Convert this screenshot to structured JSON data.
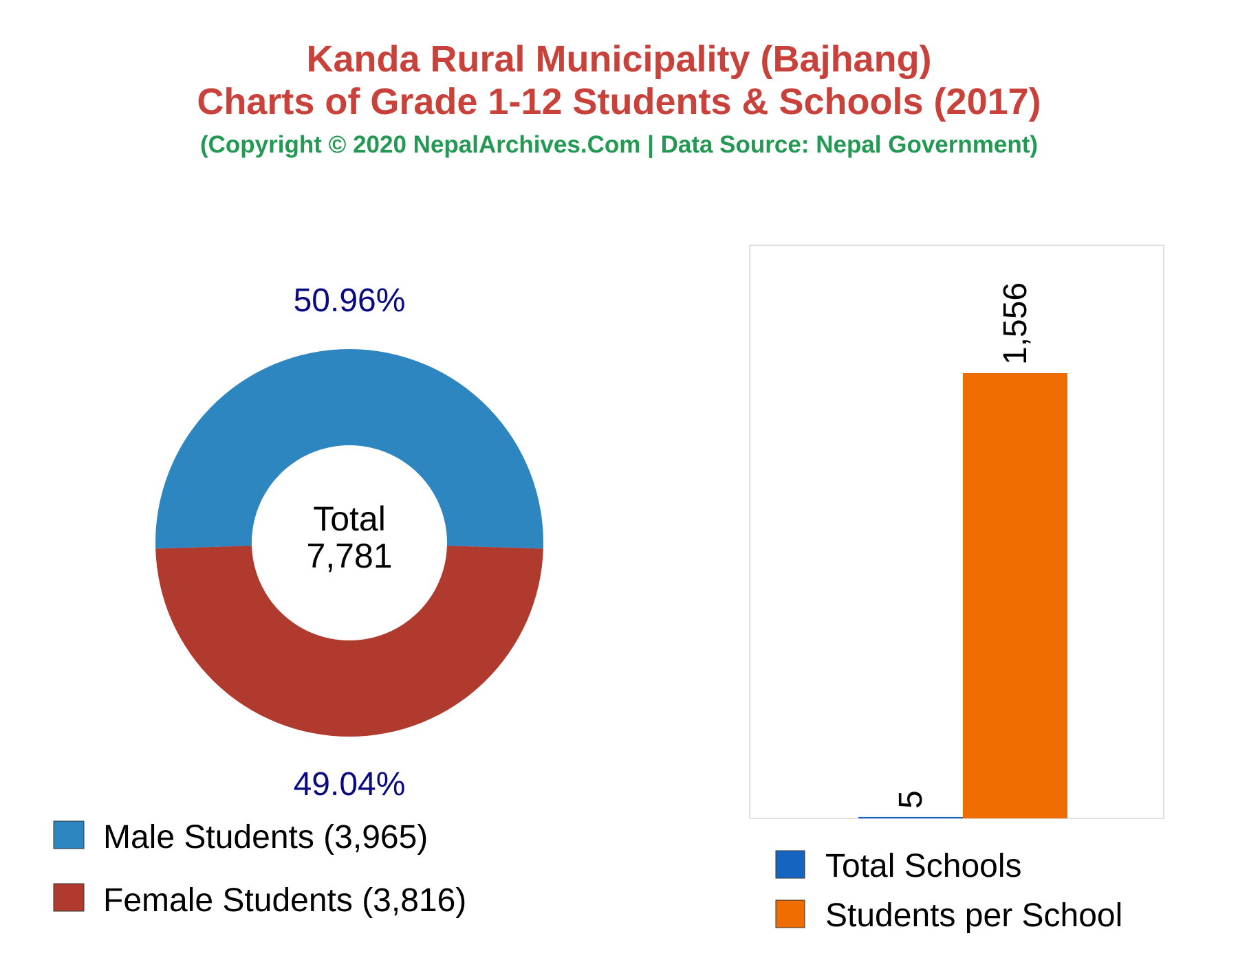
{
  "header": {
    "title_line1": "Kanda Rural Municipality (Bajhang)",
    "title_line2": "Charts of Grade 1-12 Students & Schools (2017)",
    "subtitle": "(Copyright © 2020 NepalArchives.Com | Data Source: Nepal Government)"
  },
  "chart_data": [
    {
      "type": "pie",
      "donut": true,
      "center_label": "Total",
      "center_value": "7,781",
      "slices": [
        {
          "label": "Male Students (3,965)",
          "value": 3965,
          "percent_label": "50.96%",
          "color": "#2e86c1"
        },
        {
          "label": "Female Students (3,816)",
          "value": 3816,
          "percent_label": "49.04%",
          "color": "#b03a2e"
        }
      ],
      "legend_position": "bottom-left"
    },
    {
      "type": "bar",
      "categories": [
        "Total Schools",
        "Students per School"
      ],
      "values": [
        5,
        1556
      ],
      "value_labels": [
        "5",
        "1,556"
      ],
      "colors": [
        "#1565c0",
        "#ef6c00"
      ],
      "ylim": [
        0,
        1556
      ],
      "grid": false,
      "legend_position": "bottom"
    }
  ]
}
